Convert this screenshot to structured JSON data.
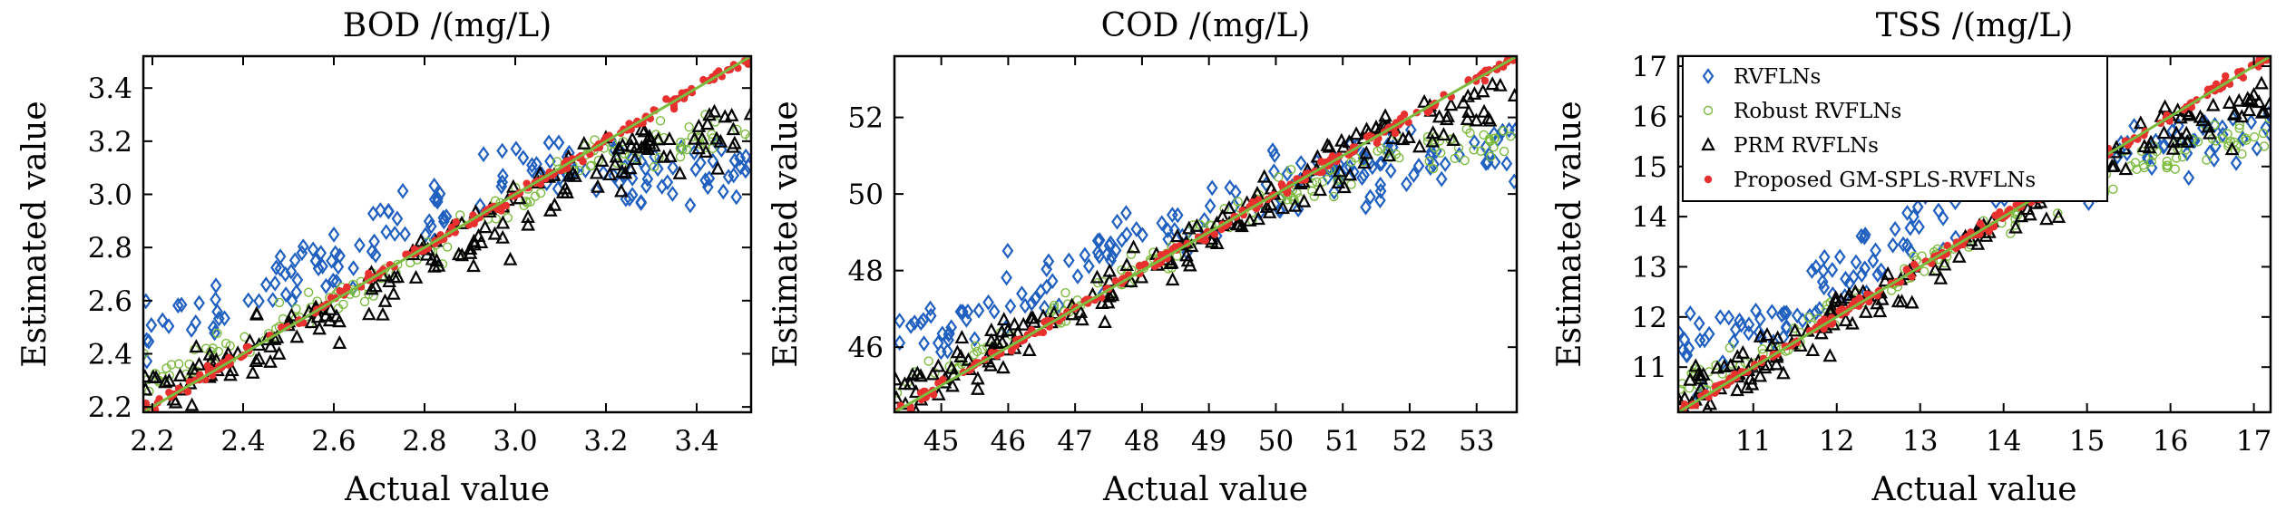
{
  "legend": {
    "placement": "top-left of third panel",
    "items": [
      {
        "label": "RVFLNs",
        "marker": "diamond-open",
        "color": "#1f5fbf"
      },
      {
        "label": "Robust RVFLNs",
        "marker": "circle-open",
        "color": "#7dbb3f"
      },
      {
        "label": "PRM RVFLNs",
        "marker": "triangle-open",
        "color": "#000000"
      },
      {
        "label": "Proposed GM-SPLS-RVFLNs",
        "marker": "circle-filled",
        "color": "#e8302e"
      }
    ]
  },
  "colors": {
    "rvfln": "#1f5fbf",
    "robust": "#7dbb3f",
    "prm": "#000000",
    "proposed": "#e8302e",
    "ideal_line": "#7dbb3f"
  },
  "chart_data": [
    {
      "type": "scatter",
      "title": "BOD /(mg/L)",
      "xlabel": "Actual value",
      "ylabel": "Estimated value",
      "xlim": [
        2.18,
        3.52
      ],
      "ylim": [
        2.18,
        3.52
      ],
      "xticks": [
        "2.2",
        "2.4",
        "2.6",
        "2.8",
        "3.0",
        "3.2",
        "3.4"
      ],
      "yticks": [
        "2.2",
        "2.4",
        "2.6",
        "2.8",
        "3.0",
        "3.2",
        "3.4"
      ],
      "grid": false,
      "series": [
        {
          "name": "RVFLNs",
          "x": [
            2.2,
            2.25,
            2.3,
            2.35,
            2.4,
            2.5,
            2.6,
            2.7,
            2.75,
            2.8,
            2.85,
            2.9,
            2.95,
            3.0,
            3.05,
            3.1,
            3.2,
            3.3,
            3.4,
            3.5
          ],
          "y": [
            2.47,
            2.49,
            2.5,
            2.55,
            2.6,
            2.68,
            2.75,
            2.85,
            2.88,
            2.92,
            2.97,
            3.02,
            3.05,
            3.12,
            3.14,
            3.13,
            3.1,
            3.05,
            3.1,
            3.13
          ]
        },
        {
          "name": "Robust RVFLNs",
          "x": [
            2.2,
            2.25,
            2.3,
            2.4,
            2.5,
            2.6,
            2.7,
            2.8,
            2.9,
            3.0,
            3.1,
            3.2,
            3.3,
            3.4,
            3.5
          ],
          "y": [
            2.31,
            2.34,
            2.37,
            2.44,
            2.52,
            2.6,
            2.68,
            2.78,
            2.88,
            2.98,
            3.08,
            3.15,
            3.18,
            3.2,
            3.22
          ]
        },
        {
          "name": "PRM RVFLNs",
          "x": [
            2.2,
            2.25,
            2.3,
            2.4,
            2.5,
            2.6,
            2.7,
            2.75,
            2.8,
            2.9,
            3.0,
            3.1,
            3.2,
            3.3,
            3.4,
            3.5
          ],
          "y": [
            2.26,
            2.28,
            2.31,
            2.4,
            2.47,
            2.56,
            2.63,
            2.72,
            2.73,
            2.82,
            2.92,
            3.02,
            3.12,
            3.18,
            3.2,
            3.27
          ]
        },
        {
          "name": "Proposed GM-SPLS-RVFLNs",
          "x": [
            2.2,
            2.25,
            2.3,
            2.4,
            2.5,
            2.6,
            2.7,
            2.8,
            2.9,
            3.0,
            3.1,
            3.2,
            3.3,
            3.4,
            3.5
          ],
          "y": [
            2.2,
            2.25,
            2.3,
            2.4,
            2.5,
            2.6,
            2.7,
            2.8,
            2.9,
            3.0,
            3.1,
            3.2,
            3.3,
            3.4,
            3.5
          ]
        }
      ]
    },
    {
      "type": "scatter",
      "title": "COD /(mg/L)",
      "xlabel": "Actual value",
      "ylabel": "Estimated value",
      "xlim": [
        44.3,
        53.6
      ],
      "ylim": [
        44.3,
        53.6
      ],
      "xticks": [
        "45",
        "46",
        "47",
        "48",
        "49",
        "50",
        "51",
        "52",
        "53"
      ],
      "yticks": [
        "46",
        "48",
        "50",
        "52"
      ],
      "grid": false,
      "series": [
        {
          "name": "RVFLNs",
          "x": [
            44.3,
            45,
            45.5,
            46,
            46.5,
            47,
            47.5,
            48,
            48.5,
            49,
            49.5,
            50,
            50.5,
            51,
            51.5,
            52,
            52.5,
            53,
            53.5
          ],
          "y": [
            46.5,
            46.6,
            46.8,
            47.2,
            47.5,
            47.8,
            48.3,
            48.8,
            49.2,
            49.5,
            49.8,
            50.1,
            50.4,
            50.6,
            50.7,
            50.8,
            50.9,
            51.0,
            51.2
          ]
        },
        {
          "name": "Robust RVFLNs",
          "x": [
            44.3,
            45,
            45.5,
            46,
            46.5,
            47,
            47.5,
            48,
            48.5,
            49,
            49.5,
            50,
            50.5,
            51,
            51.5,
            52,
            52.5,
            53,
            53.5
          ],
          "y": [
            45.0,
            45.4,
            45.8,
            46.2,
            46.7,
            47.1,
            47.6,
            48.1,
            48.5,
            49.0,
            49.5,
            49.9,
            50.3,
            50.7,
            51.0,
            51.2,
            51.3,
            51.4,
            51.5
          ]
        },
        {
          "name": "PRM RVFLNs",
          "x": [
            44.3,
            45,
            45.5,
            46,
            46.5,
            47,
            47.5,
            48,
            48.5,
            49,
            49.5,
            50,
            50.5,
            51,
            51.5,
            52,
            52.5,
            53,
            53.5
          ],
          "y": [
            44.8,
            45.2,
            45.6,
            46.1,
            46.6,
            47.0,
            47.4,
            47.9,
            48.4,
            48.9,
            49.4,
            49.9,
            50.4,
            50.9,
            51.3,
            51.6,
            51.9,
            52.2,
            52.5
          ]
        },
        {
          "name": "Proposed GM-SPLS-RVFLNs",
          "x": [
            44.3,
            45,
            46,
            47,
            48,
            49,
            50,
            51,
            52,
            53,
            53.5
          ],
          "y": [
            44.3,
            45,
            46,
            47,
            48,
            49,
            50,
            51,
            52,
            53,
            53.5
          ]
        }
      ]
    },
    {
      "type": "scatter",
      "title": "TSS /(mg/L)",
      "xlabel": "Actual value",
      "ylabel": "Estimated value",
      "xlim": [
        10.1,
        17.2
      ],
      "ylim": [
        10.1,
        17.2
      ],
      "xticks": [
        "11",
        "12",
        "13",
        "14",
        "15",
        "16",
        "17"
      ],
      "yticks": [
        "11",
        "12",
        "13",
        "14",
        "15",
        "16",
        "17"
      ],
      "grid": false,
      "series": [
        {
          "name": "RVFLNs",
          "x": [
            10.1,
            10.5,
            11,
            11.5,
            12,
            12.5,
            13,
            13.5,
            14,
            14.5,
            15,
            15.5,
            16,
            16.5,
            17
          ],
          "y": [
            11.5,
            11.5,
            11.8,
            12.2,
            12.7,
            13.3,
            13.8,
            14.2,
            14.6,
            14.9,
            15.1,
            15.3,
            15.4,
            15.5,
            15.6
          ]
        },
        {
          "name": "Robust RVFLNs",
          "x": [
            10.1,
            10.5,
            11,
            11.5,
            12,
            12.5,
            13,
            13.5,
            14,
            14.5,
            15,
            15.5,
            16,
            16.5,
            17
          ],
          "y": [
            10.6,
            10.8,
            11.2,
            11.6,
            12.0,
            12.5,
            13.0,
            13.5,
            14.0,
            14.5,
            14.8,
            15.0,
            15.2,
            15.4,
            15.6
          ]
        },
        {
          "name": "PRM RVFLNs",
          "x": [
            10.1,
            10.5,
            11,
            11.5,
            12,
            12.5,
            13,
            13.5,
            14,
            14.5,
            15,
            15.5,
            16,
            16.5,
            17
          ],
          "y": [
            10.4,
            10.6,
            11.0,
            11.5,
            12.0,
            12.4,
            12.9,
            13.4,
            13.9,
            14.4,
            14.9,
            15.3,
            15.6,
            15.9,
            16.1
          ]
        },
        {
          "name": "Proposed GM-SPLS-RVFLNs",
          "x": [
            10.1,
            11,
            12,
            13,
            14,
            15,
            16,
            17,
            17.1
          ],
          "y": [
            10.1,
            11,
            12,
            13,
            14,
            15,
            16,
            17,
            17.1
          ]
        }
      ]
    }
  ]
}
